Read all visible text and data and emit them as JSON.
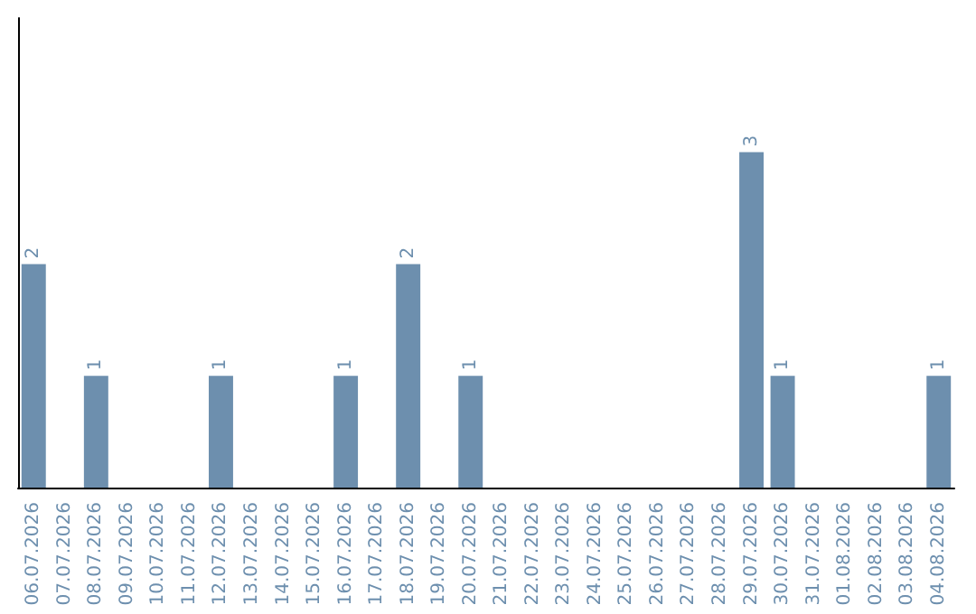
{
  "chart_data": {
    "type": "bar",
    "categories": [
      "06.07.2026",
      "07.07.2026",
      "08.07.2026",
      "09.07.2026",
      "10.07.2026",
      "11.07.2026",
      "12.07.2026",
      "13.07.2026",
      "14.07.2026",
      "15.07.2026",
      "16.07.2026",
      "17.07.2026",
      "18.07.2026",
      "19.07.2026",
      "20.07.2026",
      "21.07.2026",
      "22.07.2026",
      "23.07.2026",
      "24.07.2026",
      "25.07.2026",
      "26.07.2026",
      "27.07.2026",
      "28.07.2026",
      "29.07.2026",
      "30.07.2026",
      "31.07.2026",
      "01.08.2026",
      "02.08.2026",
      "03.08.2026",
      "04.08.2026"
    ],
    "values": [
      2,
      0,
      1,
      0,
      0,
      0,
      1,
      0,
      0,
      0,
      1,
      0,
      2,
      0,
      1,
      0,
      0,
      0,
      0,
      0,
      0,
      0,
      0,
      3,
      1,
      0,
      0,
      0,
      0,
      1
    ],
    "value_labels": [
      "2",
      null,
      "1",
      null,
      null,
      null,
      "1",
      null,
      null,
      null,
      "1",
      null,
      "2",
      null,
      "1",
      null,
      null,
      null,
      null,
      null,
      null,
      null,
      null,
      "3",
      "1",
      null,
      null,
      null,
      null,
      "1"
    ],
    "color": "#6d8fae",
    "ylim": [
      0,
      4.2
    ],
    "grid": false
  }
}
